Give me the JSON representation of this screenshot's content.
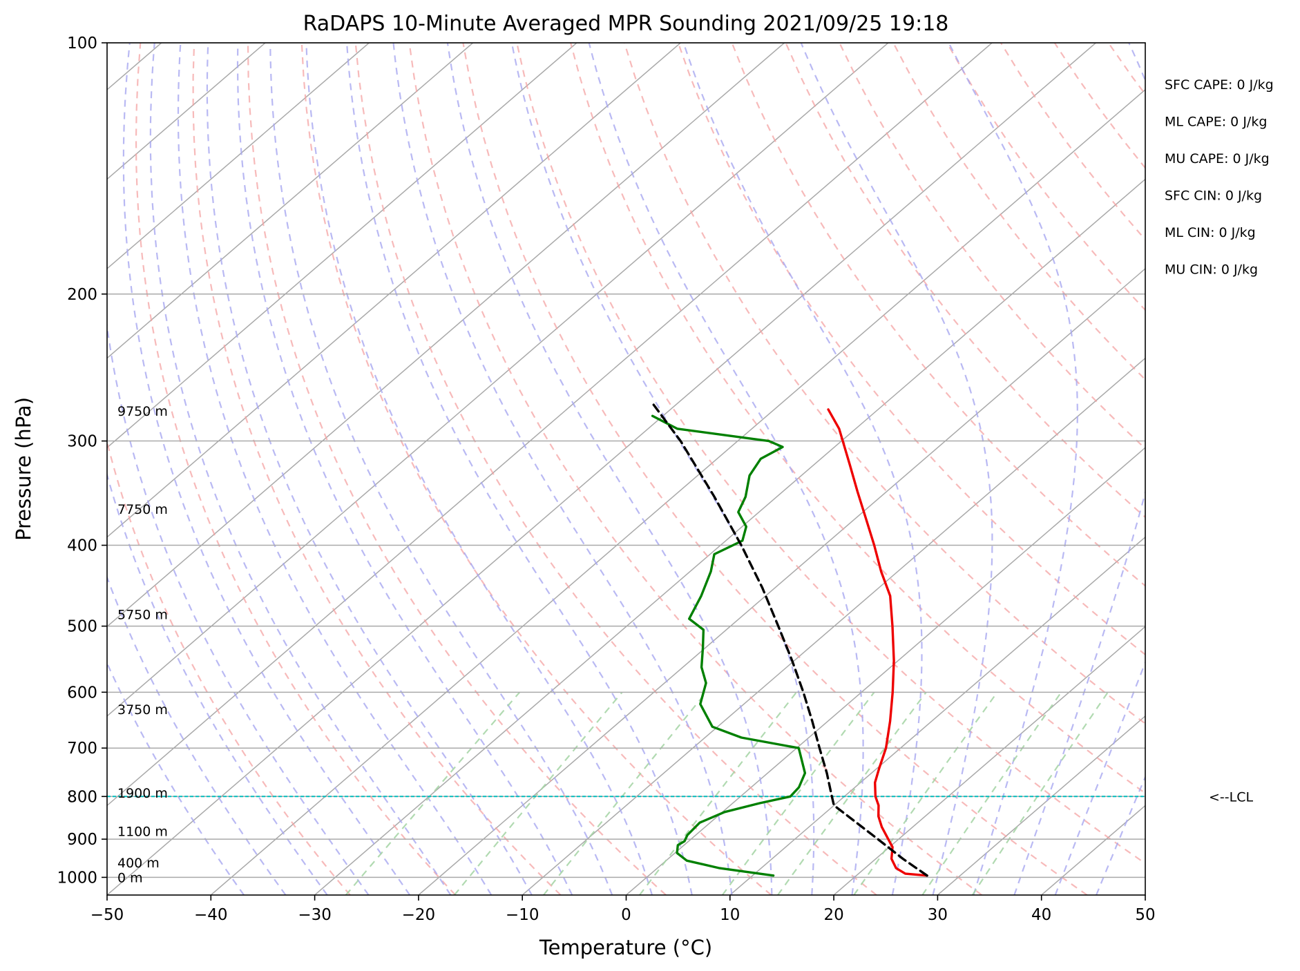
{
  "chart_data": {
    "type": "line",
    "title": "RaDAPS 10-Minute Averaged MPR Sounding 2021/09/25 19:18",
    "xlabel": "Temperature (°C)",
    "ylabel": "Pressure (hPa)",
    "xlim": [
      -50,
      50
    ],
    "ylim": [
      1050,
      100
    ],
    "yscale": "log",
    "skew": true,
    "grid": true,
    "x_ticks": [
      "−50",
      "−40",
      "−30",
      "−20",
      "−10",
      "0",
      "10",
      "20",
      "30",
      "40",
      "50"
    ],
    "x_tick_values": [
      -50,
      -40,
      -30,
      -20,
      -10,
      0,
      10,
      20,
      30,
      40,
      50
    ],
    "y_ticks": [
      "100",
      "200",
      "300",
      "400",
      "500",
      "600",
      "700",
      "800",
      "900",
      "1000"
    ],
    "y_tick_values": [
      100,
      200,
      300,
      400,
      500,
      600,
      700,
      800,
      900,
      1000
    ],
    "series": [
      {
        "role": "temperature",
        "color": "#ee0000",
        "points": [
          [
            995,
            26.8
          ],
          [
            990,
            24.5
          ],
          [
            975,
            23.0
          ],
          [
            950,
            21.5
          ],
          [
            920,
            20.3
          ],
          [
            900,
            19.0
          ],
          [
            870,
            17.0
          ],
          [
            845,
            15.5
          ],
          [
            820,
            14.3
          ],
          [
            800,
            13.0
          ],
          [
            770,
            11.4
          ],
          [
            740,
            10.2
          ],
          [
            700,
            8.6
          ],
          [
            650,
            6.0
          ],
          [
            600,
            3.0
          ],
          [
            550,
            -0.4
          ],
          [
            500,
            -4.4
          ],
          [
            460,
            -8.0
          ],
          [
            430,
            -11.6
          ],
          [
            400,
            -15.2
          ],
          [
            370,
            -19.2
          ],
          [
            345,
            -22.8
          ],
          [
            320,
            -26.6
          ],
          [
            290,
            -31.6
          ],
          [
            275,
            -34.8
          ]
        ]
      },
      {
        "role": "dewpoint",
        "color": "#008000",
        "points": [
          [
            995,
            12.0
          ],
          [
            975,
            6.0
          ],
          [
            955,
            2.0
          ],
          [
            935,
            0.2
          ],
          [
            915,
            -0.6
          ],
          [
            905,
            -0.4
          ],
          [
            890,
            -0.8
          ],
          [
            860,
            -1.0
          ],
          [
            835,
            0.2
          ],
          [
            815,
            2.6
          ],
          [
            800,
            4.8
          ],
          [
            780,
            4.6
          ],
          [
            750,
            3.6
          ],
          [
            700,
            0.2
          ],
          [
            680,
            -6.5
          ],
          [
            660,
            -10.5
          ],
          [
            620,
            -14.2
          ],
          [
            585,
            -16.0
          ],
          [
            560,
            -18.2
          ],
          [
            530,
            -20.3
          ],
          [
            505,
            -22.2
          ],
          [
            490,
            -24.8
          ],
          [
            460,
            -26.2
          ],
          [
            430,
            -28.0
          ],
          [
            410,
            -29.6
          ],
          [
            395,
            -28.4
          ],
          [
            380,
            -29.6
          ],
          [
            365,
            -32.0
          ],
          [
            350,
            -33.0
          ],
          [
            330,
            -35.0
          ],
          [
            315,
            -35.8
          ],
          [
            305,
            -35.0
          ],
          [
            300,
            -37.0
          ],
          [
            290,
            -47.2
          ],
          [
            280,
            -51.0
          ]
        ]
      },
      {
        "role": "parcel",
        "color": "#000000",
        "dashed": true,
        "points": [
          [
            995,
            26.8
          ],
          [
            950,
            22.6
          ],
          [
            900,
            18.0
          ],
          [
            850,
            13.1
          ],
          [
            820,
            10.0
          ],
          [
            800,
            8.8
          ],
          [
            750,
            5.7
          ],
          [
            700,
            2.2
          ],
          [
            650,
            -1.5
          ],
          [
            600,
            -5.6
          ],
          [
            550,
            -10.2
          ],
          [
            500,
            -15.4
          ],
          [
            450,
            -21.2
          ],
          [
            400,
            -28.0
          ],
          [
            350,
            -36.0
          ],
          [
            300,
            -45.5
          ],
          [
            270,
            -52.5
          ]
        ]
      }
    ],
    "lcl_pressure": 800,
    "lcl_label": "<--LCL",
    "height_labels": [
      {
        "text": "9750 m",
        "p": 276
      },
      {
        "text": "7750 m",
        "p": 362
      },
      {
        "text": "5750 m",
        "p": 484
      },
      {
        "text": "3750 m",
        "p": 629
      },
      {
        "text": "1900 m",
        "p": 792
      },
      {
        "text": "1100 m",
        "p": 880
      },
      {
        "text": "400 m",
        "p": 960
      },
      {
        "text": "0 m",
        "p": 1000
      }
    ],
    "stats": [
      "SFC CAPE: 0 J/kg",
      "ML CAPE: 0 J/kg",
      "MU CAPE: 0 J/kg",
      "SFC CIN: 0 J/kg",
      "ML CIN: 0 J/kg",
      "MU CIN: 0 J/kg"
    ],
    "colors": {
      "isotherm": "#a9a9a9",
      "dry_adiabat": "#f4a3a3",
      "moist_adiabat": "#a8a8f0",
      "mixing_ratio": "#a3d3a3",
      "lcl_line": "#00bcbc"
    }
  }
}
